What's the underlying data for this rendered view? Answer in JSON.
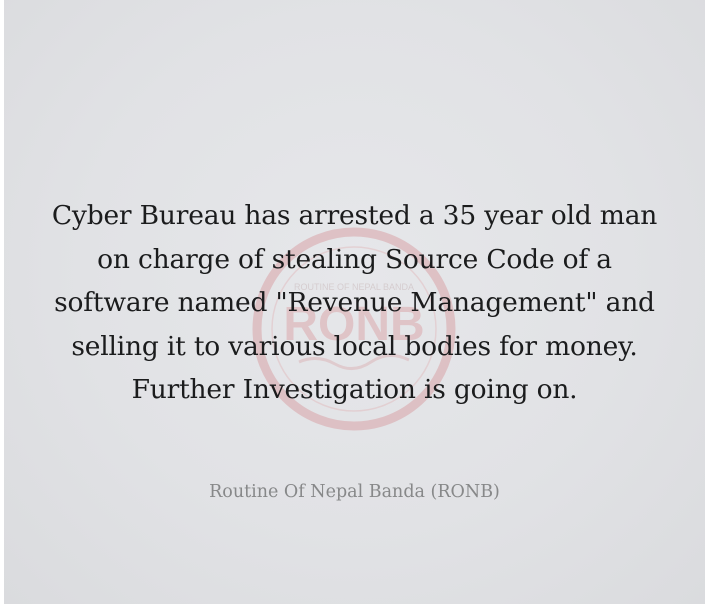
{
  "post": {
    "headline_lines": [
      "Cyber Bureau has arrested a 35 year old man",
      "on charge of stealing Source Code of a",
      "software named \"Revenue Management\" and",
      "selling it to various local bodies for money.",
      "Further Investigation is going on."
    ],
    "source": "Routine Of Nepal Banda (RONB)"
  },
  "watermark": {
    "text": "RONB",
    "subtext": "ROUTINE OF NEPAL BANDA"
  },
  "colors": {
    "background": "#e3e4e7",
    "text": "#1b1c1d",
    "source_text": "#878889",
    "watermark": "#d9a4a8"
  }
}
